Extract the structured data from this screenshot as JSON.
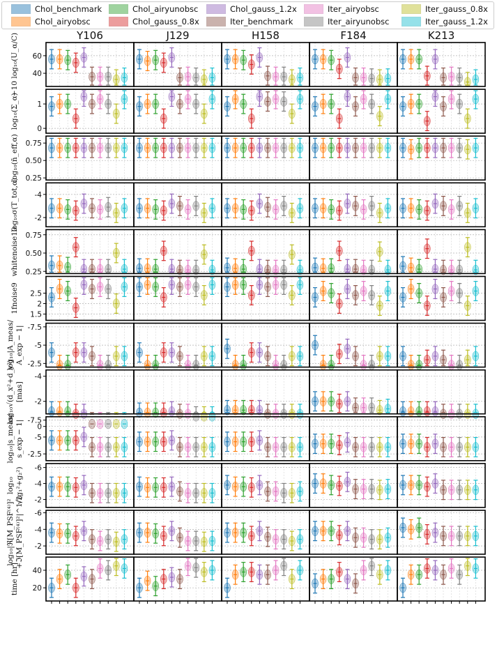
{
  "legend": {
    "entries": [
      {
        "name": "Chol_benchmark",
        "color": "#1f77b4"
      },
      {
        "name": "Chol_airyobsc",
        "color": "#ff7f0e"
      },
      {
        "name": "Chol_airyunobsc",
        "color": "#2ca02c"
      },
      {
        "name": "Chol_gauss_0.8x",
        "color": "#d62728"
      },
      {
        "name": "Chol_gauss_1.2x",
        "color": "#9467bd"
      },
      {
        "name": "Iter_benchmark",
        "color": "#8c564b"
      },
      {
        "name": "Iter_airyobsc",
        "color": "#e377c2"
      },
      {
        "name": "Iter_airyunobsc",
        "color": "#7f7f7f"
      },
      {
        "name": "Iter_gauss_0.8x",
        "color": "#bcbd22"
      },
      {
        "name": "Iter_gauss_1.2x",
        "color": "#17becf"
      }
    ]
  },
  "chart_data": {
    "type": "violin",
    "columns": [
      "Y106",
      "J129",
      "H158",
      "F184",
      "K213"
    ],
    "series": [
      "Chol_benchmark",
      "Chol_airyobsc",
      "Chol_airyunobsc",
      "Chol_gauss_0.8x",
      "Chol_gauss_1.2x",
      "Iter_benchmark",
      "Iter_airyobsc",
      "Iter_airyunobsc",
      "Iter_gauss_0.8x",
      "Iter_gauss_1.2x"
    ],
    "rows": [
      {
        "ylabel": [
          "−10 log₁₀(U_α/C)"
        ],
        "ylim": [
          25,
          75
        ],
        "ticks": [
          40,
          60
        ],
        "inverted": false,
        "values": [
          [
            56,
            56,
            55,
            52,
            58,
            36,
            36,
            36,
            33,
            35
          ],
          [
            56,
            54,
            55,
            52,
            58,
            35,
            36,
            35,
            33,
            35
          ],
          [
            56,
            56,
            55,
            50,
            58,
            37,
            36,
            36,
            33,
            35
          ],
          [
            56,
            56,
            55,
            45,
            58,
            35,
            35,
            34,
            33,
            34
          ],
          [
            56,
            56,
            56,
            37,
            56,
            35,
            36,
            35,
            30,
            33
          ]
        ]
      },
      {
        "ylabel": [
          "log₁₀(Σ_α)"
        ],
        "ylim": [
          -0.2,
          1.6
        ],
        "ticks": [
          0,
          1
        ],
        "inverted": false,
        "values": [
          [
            0.9,
            1.0,
            1.0,
            0.4,
            1.3,
            1.0,
            1.2,
            1.0,
            0.6,
            1.2
          ],
          [
            0.9,
            1.0,
            1.0,
            0.4,
            1.3,
            1.0,
            1.2,
            1.0,
            0.6,
            1.2
          ],
          [
            0.9,
            1.2,
            1.0,
            0.4,
            1.3,
            1.1,
            1.2,
            1.1,
            0.6,
            1.2
          ],
          [
            0.9,
            1.0,
            1.0,
            0.4,
            1.3,
            0.9,
            1.2,
            1.0,
            0.5,
            1.2
          ],
          [
            0.9,
            1.0,
            1.0,
            0.3,
            1.3,
            0.9,
            1.2,
            1.0,
            0.4,
            1.2
          ]
        ]
      },
      {
        "ylabel": [
          "log₁₀(n̄_eff,α)"
        ],
        "ylim": [
          0.22,
          0.85
        ],
        "ticks": [
          0.25,
          0.5,
          0.75
        ],
        "inverted": false,
        "values": [
          [
            0.68,
            0.68,
            0.68,
            0.68,
            0.68,
            0.68,
            0.68,
            0.68,
            0.68,
            0.68
          ],
          [
            0.68,
            0.68,
            0.68,
            0.68,
            0.68,
            0.68,
            0.68,
            0.68,
            0.68,
            0.68
          ],
          [
            0.68,
            0.68,
            0.68,
            0.68,
            0.68,
            0.68,
            0.68,
            0.68,
            0.68,
            0.68
          ],
          [
            0.68,
            0.68,
            0.68,
            0.68,
            0.68,
            0.68,
            0.68,
            0.68,
            0.68,
            0.68
          ],
          [
            0.68,
            0.66,
            0.68,
            0.68,
            0.68,
            0.68,
            0.68,
            0.68,
            0.66,
            0.68
          ]
        ]
      },
      {
        "ylabel": [
          "log₁₀σ(T_tot,α)"
        ],
        "ylim": [
          -1.2,
          -5.0
        ],
        "ticks": [
          -2,
          -4
        ],
        "inverted": true,
        "values": [
          [
            -2.8,
            -2.8,
            -2.7,
            -2.6,
            -3.2,
            -2.8,
            -2.7,
            -2.9,
            -2.4,
            -2.8
          ],
          [
            -2.8,
            -2.8,
            -2.7,
            -2.6,
            -3.2,
            -3.0,
            -2.7,
            -3.0,
            -2.4,
            -2.8
          ],
          [
            -2.8,
            -2.8,
            -2.7,
            -2.6,
            -3.2,
            -2.9,
            -2.7,
            -3.0,
            -2.4,
            -2.8
          ],
          [
            -2.8,
            -2.8,
            -2.7,
            -2.6,
            -3.2,
            -3.0,
            -2.7,
            -3.0,
            -2.4,
            -2.8
          ],
          [
            -2.8,
            -2.8,
            -2.7,
            -2.6,
            -3.2,
            -3.0,
            -2.7,
            -3.0,
            -2.4,
            -2.8
          ]
        ]
      },
      {
        "ylabel": [
          "whitenoise10"
        ],
        "ylim": [
          0.22,
          0.82
        ],
        "ticks": [
          0.25,
          0.5,
          0.75
        ],
        "inverted": false,
        "values": [
          [
            0.33,
            0.33,
            0.31,
            0.58,
            0.28,
            0.28,
            0.28,
            0.28,
            0.5,
            0.28
          ],
          [
            0.29,
            0.29,
            0.28,
            0.53,
            0.28,
            0.27,
            0.27,
            0.27,
            0.48,
            0.27
          ],
          [
            0.3,
            0.29,
            0.28,
            0.53,
            0.28,
            0.27,
            0.27,
            0.27,
            0.48,
            0.27
          ],
          [
            0.3,
            0.29,
            0.29,
            0.53,
            0.28,
            0.28,
            0.27,
            0.27,
            0.52,
            0.27
          ],
          [
            0.32,
            0.3,
            0.28,
            0.56,
            0.28,
            0.27,
            0.27,
            0.27,
            0.58,
            0.27
          ]
        ]
      },
      {
        "ylabel": [
          "1fnoise9"
        ],
        "ylim": [
          1.2,
          3.3
        ],
        "ticks": [
          1.5,
          2.0,
          2.5
        ],
        "inverted": false,
        "values": [
          [
            2.3,
            2.7,
            2.6,
            1.8,
            2.9,
            2.7,
            2.8,
            2.7,
            2.0,
            2.8
          ],
          [
            2.8,
            2.9,
            2.8,
            2.3,
            2.9,
            2.8,
            2.9,
            2.8,
            2.4,
            2.9
          ],
          [
            2.8,
            2.9,
            2.9,
            2.4,
            2.9,
            2.8,
            2.9,
            2.9,
            2.4,
            2.9
          ],
          [
            2.3,
            2.6,
            2.5,
            2.0,
            2.7,
            2.4,
            2.6,
            2.4,
            1.9,
            2.6
          ],
          [
            2.3,
            2.7,
            2.5,
            1.9,
            2.7,
            2.3,
            2.6,
            2.5,
            1.9,
            2.6
          ]
        ]
      },
      {
        "ylabel": [
          "log₁₀|A_meas/",
          "A_exp − 1|"
        ],
        "ylim": [
          -2.0,
          -8.0
        ],
        "ticks": [
          -2.5,
          -5.0,
          -7.5
        ],
        "inverted": true,
        "values": [
          [
            -4.0,
            -2.3,
            -2.3,
            -4.0,
            -4.0,
            -3.5,
            -2.3,
            -2.3,
            -3.5,
            -3.5
          ],
          [
            -4.0,
            -2.3,
            -2.3,
            -4.0,
            -4.0,
            -3.5,
            -2.3,
            -2.3,
            -3.5,
            -3.5
          ],
          [
            -4.5,
            -2.3,
            -2.3,
            -4.0,
            -4.0,
            -3.5,
            -2.3,
            -2.3,
            -3.5,
            -3.5
          ],
          [
            -5.0,
            -2.3,
            -2.3,
            -3.8,
            -4.5,
            -3.5,
            -2.3,
            -2.3,
            -3.5,
            -3.5
          ],
          [
            -3.5,
            -2.3,
            -2.3,
            -3.0,
            -3.5,
            -3.0,
            -2.3,
            -2.3,
            -3.0,
            -3.5
          ]
        ]
      },
      {
        "ylabel": [
          "log₁₀√(d_x²+d_y²)",
          "[mas]"
        ],
        "ylim": [
          -1.0,
          -4.5
        ],
        "ticks": [
          0,
          -2,
          -4
        ],
        "inverted": true,
        "values": [
          [
            -1.2,
            -1.2,
            -1.2,
            -1.0,
            -1.0,
            -0.2,
            -0.2,
            -0.2,
            -0.2,
            -0.2
          ],
          [
            -1.1,
            -1.1,
            -1.1,
            -1.1,
            -1.2,
            -1.0,
            -1.0,
            -0.8,
            -0.8,
            -0.8
          ],
          [
            -1.3,
            -1.3,
            -1.3,
            -1.3,
            -1.3,
            -1.0,
            -1.0,
            -1.0,
            -1.0,
            -1.0
          ],
          [
            -2.0,
            -2.0,
            -2.0,
            -1.8,
            -2.0,
            -1.5,
            -1.5,
            -1.5,
            -1.3,
            -1.4
          ],
          [
            -1.2,
            -1.2,
            -1.2,
            -1.2,
            -1.2,
            -1.0,
            -1.0,
            -1.0,
            -1.0,
            -1.0
          ]
        ]
      },
      {
        "ylabel": [
          "log₁₀|s_meas/",
          "s_exp − 1|"
        ],
        "ylim": [
          -1.5,
          -8.0
        ],
        "ticks": [
          -2.5,
          -5.0,
          -7.5
        ],
        "inverted": true,
        "values": [
          [
            -4.5,
            -4.5,
            -4.5,
            -4.5,
            -5.0,
            -3.5,
            -3.5,
            -3.5,
            -3.5,
            -3.5
          ],
          [
            -4.3,
            -4.3,
            -4.3,
            -4.3,
            -4.5,
            -3.5,
            -3.5,
            -3.5,
            -3.5,
            -3.5
          ],
          [
            -4.3,
            -4.3,
            -4.3,
            -4.3,
            -4.5,
            -3.5,
            -3.5,
            -3.5,
            -3.5,
            -3.5
          ],
          [
            -4.0,
            -4.0,
            -4.0,
            -3.8,
            -4.2,
            -3.5,
            -3.5,
            -3.5,
            -3.5,
            -3.5
          ],
          [
            -4.0,
            -4.0,
            -4.0,
            -3.5,
            -4.0,
            -3.5,
            -3.5,
            -3.5,
            -3.5,
            -3.5
          ]
        ]
      },
      {
        "ylabel": [
          "log₁₀",
          "√(g₁²+g₂²)"
        ],
        "ylim": [
          -1.0,
          -6.5
        ],
        "ticks": [
          -2,
          -4,
          -6
        ],
        "inverted": true,
        "values": [
          [
            -3.6,
            -3.6,
            -3.6,
            -3.5,
            -3.8,
            -2.8,
            -2.8,
            -2.8,
            -2.8,
            -2.8
          ],
          [
            -3.6,
            -3.5,
            -3.5,
            -3.5,
            -3.6,
            -3.0,
            -2.8,
            -2.8,
            -2.8,
            -2.8
          ],
          [
            -3.8,
            -3.6,
            -3.6,
            -3.5,
            -3.8,
            -3.0,
            -3.0,
            -2.8,
            -2.8,
            -3.0
          ],
          [
            -4.0,
            -4.0,
            -3.8,
            -3.7,
            -4.2,
            -3.3,
            -3.3,
            -3.3,
            -3.2,
            -3.3
          ],
          [
            -3.8,
            -3.8,
            -3.8,
            -3.6,
            -4.0,
            -3.2,
            -3.2,
            -3.2,
            -3.2,
            -3.2
          ]
        ]
      },
      {
        "ylabel": [
          "log₁₀|ℜ[M_PSF⁽⁴⁾]²",
          "+ℑ[M_PSF⁽⁴⁾]²|^1/2"
        ],
        "ylim": [
          -1.0,
          -6.3
        ],
        "ticks": [
          -2,
          -4,
          -6
        ],
        "inverted": true,
        "values": [
          [
            -3.6,
            -3.5,
            -3.5,
            -3.2,
            -3.8,
            -2.8,
            -2.6,
            -2.8,
            -2.5,
            -2.8
          ],
          [
            -3.6,
            -3.6,
            -3.5,
            -3.2,
            -3.8,
            -3.0,
            -2.6,
            -2.6,
            -2.5,
            -2.6
          ],
          [
            -3.6,
            -3.6,
            -3.6,
            -3.2,
            -3.8,
            -3.1,
            -2.8,
            -2.8,
            -2.6,
            -2.8
          ],
          [
            -3.8,
            -3.8,
            -3.8,
            -3.3,
            -3.8,
            -3.0,
            -3.0,
            -2.8,
            -2.8,
            -3.0
          ],
          [
            -4.2,
            -4.0,
            -4.2,
            -3.4,
            -3.6,
            -3.2,
            -3.2,
            -3.2,
            -3.2,
            -3.2
          ]
        ]
      },
      {
        "ylabel": [
          "time [hr]"
        ],
        "ylim": [
          5,
          55
        ],
        "ticks": [
          20,
          40
        ],
        "inverted": true,
        "values": [
          [
            20,
            30,
            35,
            20,
            33,
            30,
            42,
            40,
            45,
            42
          ],
          [
            20,
            28,
            22,
            30,
            32,
            30,
            45,
            43,
            38,
            40
          ],
          [
            20,
            35,
            38,
            38,
            35,
            35,
            40,
            45,
            30,
            40
          ],
          [
            25,
            30,
            30,
            38,
            30,
            25,
            40,
            45,
            35,
            40
          ],
          [
            20,
            35,
            35,
            42,
            40,
            35,
            42,
            35,
            45,
            42
          ]
        ]
      }
    ]
  }
}
